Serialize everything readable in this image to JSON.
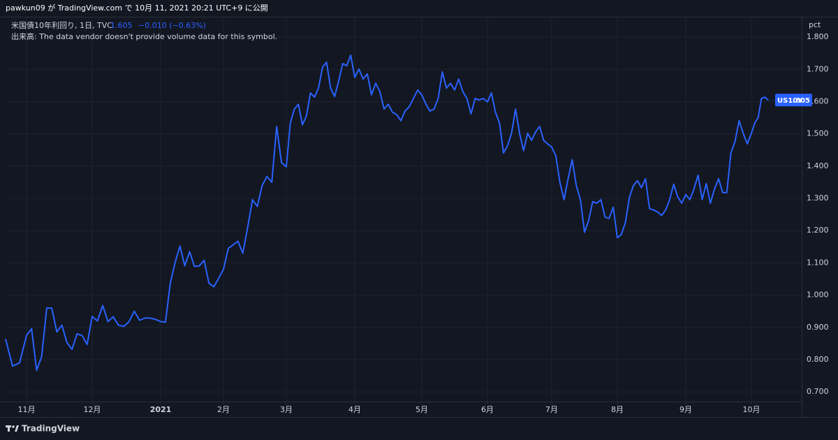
{
  "header": {
    "publisher": "pawkun09 が TradingView.com で 10月 11, 2021 20:21 UTC+9 に公開"
  },
  "chart_data": {
    "type": "line",
    "title": "米国債10年利回り, 1日, TVC",
    "change": "−0.010 (−0.63%)",
    "volume_note": "出来高: The data vendor doesn't provide volume data for this symbol.",
    "unit": "pct",
    "categories": [
      null,
      null,
      null,
      "11月",
      null,
      null,
      null,
      null,
      null,
      null,
      null,
      null,
      null,
      null,
      null,
      null,
      "12月",
      null,
      null,
      null,
      null,
      null,
      null,
      null,
      null,
      null,
      null,
      null,
      null,
      "2021",
      null,
      null,
      null,
      null,
      null,
      null,
      null,
      null,
      null,
      null,
      null,
      null,
      "2月",
      null,
      null,
      null,
      null,
      null,
      null,
      null,
      null,
      null,
      null,
      null,
      null,
      "3月",
      null,
      null,
      null,
      null,
      null,
      null,
      null,
      null,
      null,
      null,
      null,
      null,
      null,
      null,
      null,
      null,
      "4月",
      null,
      null,
      null,
      null,
      null,
      null,
      null,
      null,
      null,
      null,
      null,
      null,
      null,
      null,
      null,
      "5月",
      null,
      null,
      null,
      null,
      null,
      null,
      null,
      null,
      null,
      null,
      null,
      null,
      null,
      null,
      null,
      "6月",
      null,
      null,
      null,
      null,
      null,
      null,
      null,
      null,
      null,
      null,
      null,
      null,
      null,
      null,
      null,
      "7月",
      null,
      null,
      null,
      null,
      null,
      null,
      null,
      null,
      null,
      null,
      null,
      null,
      null,
      null,
      null,
      "8月",
      null,
      null,
      null,
      null,
      null,
      null,
      null,
      null,
      null,
      null,
      null,
      null,
      null,
      null,
      null,
      null,
      "9月",
      null,
      null,
      null,
      null,
      null,
      null,
      null,
      null,
      null,
      null,
      null,
      null,
      null,
      null,
      null,
      "10月",
      null,
      null,
      null,
      null,
      null
    ],
    "series": [
      {
        "name": "US10Y",
        "color": "#2962ff",
        "values": [
          0.864,
          0.78,
          0.79,
          0.875,
          0.896,
          0.767,
          0.81,
          0.96,
          0.96,
          0.886,
          0.907,
          0.853,
          0.832,
          0.88,
          0.875,
          0.847,
          0.934,
          0.92,
          0.968,
          0.918,
          0.933,
          0.907,
          0.903,
          0.918,
          0.95,
          0.922,
          0.929,
          0.929,
          0.925,
          0.918,
          0.916,
          1.037,
          1.102,
          1.152,
          1.091,
          1.135,
          1.089,
          1.091,
          1.108,
          1.037,
          1.026,
          1.052,
          1.08,
          1.145,
          1.156,
          1.167,
          1.13,
          1.21,
          1.296,
          1.275,
          1.34,
          1.368,
          1.35,
          1.523,
          1.411,
          1.398,
          1.534,
          1.577,
          1.592,
          1.528,
          1.556,
          1.627,
          1.614,
          1.642,
          1.707,
          1.722,
          1.642,
          1.616,
          1.664,
          1.718,
          1.711,
          1.744,
          1.675,
          1.701,
          1.67,
          1.686,
          1.621,
          1.657,
          1.631,
          1.577,
          1.592,
          1.567,
          1.56,
          1.541,
          1.571,
          1.584,
          1.61,
          1.636,
          1.621,
          1.592,
          1.571,
          1.577,
          1.61,
          1.692,
          1.642,
          1.657,
          1.636,
          1.67,
          1.631,
          1.61,
          1.562,
          1.61,
          1.605,
          1.61,
          1.599,
          1.627,
          1.567,
          1.534,
          1.441,
          1.463,
          1.502,
          1.577,
          1.502,
          1.448,
          1.502,
          1.48,
          1.506,
          1.523,
          1.48,
          1.469,
          1.459,
          1.433,
          1.35,
          1.296,
          1.361,
          1.42,
          1.34,
          1.296,
          1.195,
          1.231,
          1.29,
          1.285,
          1.296,
          1.242,
          1.238,
          1.273,
          1.178,
          1.188,
          1.225,
          1.303,
          1.34,
          1.355,
          1.333,
          1.361,
          1.268,
          1.264,
          1.258,
          1.247,
          1.264,
          1.296,
          1.344,
          1.305,
          1.285,
          1.312,
          1.296,
          1.329,
          1.372,
          1.296,
          1.346,
          1.285,
          1.329,
          1.361,
          1.318,
          1.318,
          1.441,
          1.476,
          1.541,
          1.502,
          1.469,
          1.502,
          1.534,
          1.55,
          1.61,
          1.614,
          1.605
        ]
      }
    ],
    "ylim": [
      0.67,
      1.861
    ],
    "yticks": [
      {
        "value": 0.7,
        "label": "0.700"
      },
      {
        "value": 0.8,
        "label": "0.800"
      },
      {
        "value": 0.9,
        "label": "0.900"
      },
      {
        "value": 1,
        "label": "1.000"
      },
      {
        "value": 1.1,
        "label": "1.100"
      },
      {
        "value": 1.2,
        "label": "1.200"
      },
      {
        "value": 1.3,
        "label": "1.300"
      },
      {
        "value": 1.4,
        "label": "1.400"
      },
      {
        "value": 1.5,
        "label": "1.500"
      },
      {
        "value": 1.6,
        "label": "1.600"
      },
      {
        "value": 1.7,
        "label": "1.700"
      },
      {
        "value": 1.8,
        "label": "1.800"
      }
    ],
    "grid": true
  },
  "footer": {
    "brand": "TradingView"
  }
}
